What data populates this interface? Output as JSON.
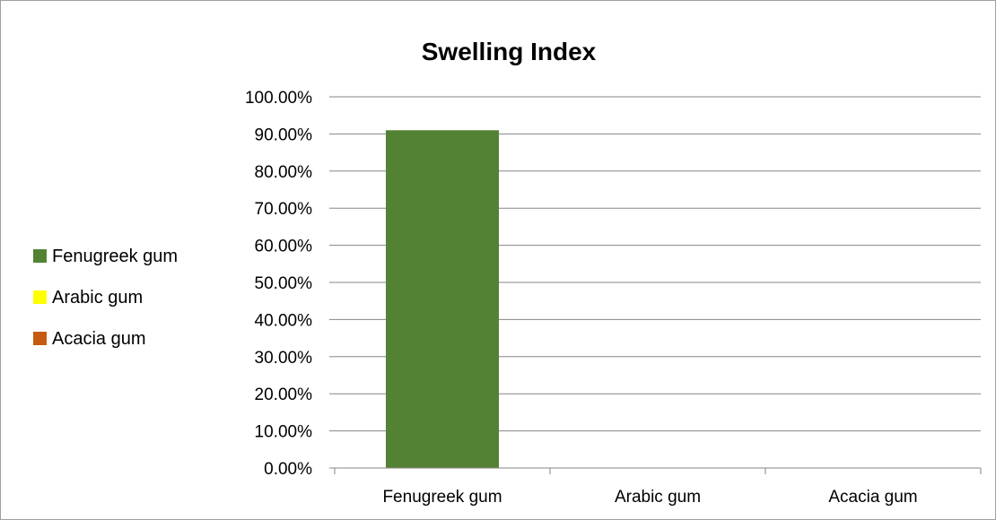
{
  "chart_data": {
    "type": "bar",
    "title": "Swelling Index",
    "categories": [
      "Fenugreek gum",
      "Arabic gum",
      "Acacia gum"
    ],
    "values": [
      91.0,
      0.0,
      0.0
    ],
    "colors": [
      "#548235",
      "#ffff00",
      "#c55a11"
    ],
    "ylim": [
      0,
      100
    ],
    "yticks": [
      0,
      10,
      20,
      30,
      40,
      50,
      60,
      70,
      80,
      90,
      100
    ],
    "ytick_labels": [
      "0.00%",
      "10.00%",
      "20.00%",
      "30.00%",
      "40.00%",
      "50.00%",
      "60.00%",
      "70.00%",
      "80.00%",
      "90.00%",
      "100.00%"
    ],
    "grid": true,
    "legend": {
      "placement": "left",
      "entries": [
        {
          "label": "Fenugreek gum",
          "color": "#548235"
        },
        {
          "label": "Arabic gum",
          "color": "#ffff00"
        },
        {
          "label": "Acacia gum",
          "color": "#c55a11"
        }
      ]
    },
    "gridline_color": "#868686",
    "axis_color": "#868686"
  }
}
